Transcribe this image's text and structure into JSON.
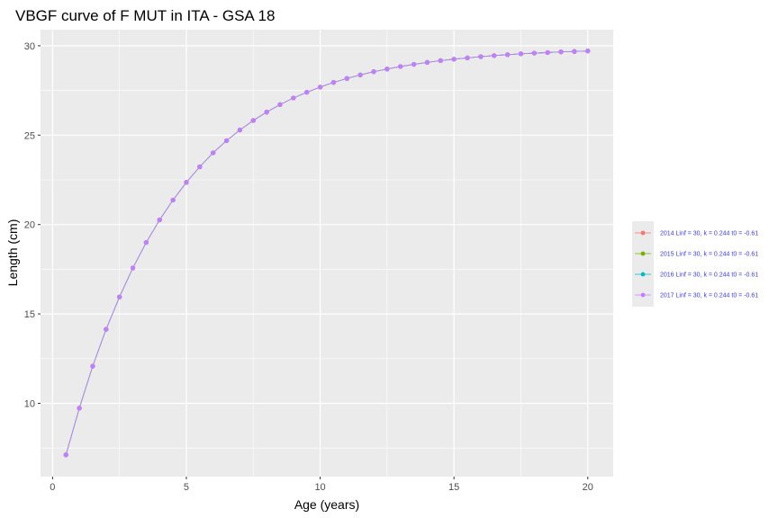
{
  "chart_data": {
    "type": "line",
    "title": "VBGF curve of F MUT in ITA - GSA 18",
    "xlabel": "Age (years)",
    "ylabel": "Length (cm)",
    "xlim": [
      -0.45,
      20.95
    ],
    "ylim": [
      5.9,
      30.9
    ],
    "x_ticks": [
      0,
      5,
      10,
      15,
      20
    ],
    "y_ticks": [
      10,
      15,
      20,
      25,
      30
    ],
    "grid": true,
    "legend_position": "right",
    "x": [
      0.5,
      1,
      1.5,
      2,
      2.5,
      3,
      3.5,
      4,
      4.5,
      5,
      5.5,
      6,
      6.5,
      7,
      7.5,
      8,
      8.5,
      9,
      9.5,
      10,
      10.5,
      11,
      11.5,
      12,
      12.5,
      13,
      13.5,
      14,
      14.5,
      15,
      15.5,
      16,
      16.5,
      17,
      17.5,
      18,
      18.5,
      19,
      19.5,
      20
    ],
    "series": [
      {
        "name": "2014 Linf = 30, k = 0.244 t0 = -0.61",
        "color": "#F8766D",
        "values": [
          7.12,
          9.73,
          12.08,
          14.14,
          15.95,
          17.57,
          19.0,
          20.26,
          21.37,
          22.36,
          23.23,
          24.01,
          24.69,
          25.29,
          25.82,
          26.29,
          26.71,
          27.08,
          27.4,
          27.69,
          27.95,
          28.17,
          28.37,
          28.55,
          28.7,
          28.84,
          28.96,
          29.07,
          29.17,
          29.25,
          29.32,
          29.39,
          29.45,
          29.5,
          29.55,
          29.59,
          29.62,
          29.66,
          29.68,
          29.71
        ]
      },
      {
        "name": "2015 Linf = 30, k = 0.244 t0 = -0.61",
        "color": "#7CAE00",
        "values": [
          7.12,
          9.73,
          12.08,
          14.14,
          15.95,
          17.57,
          19.0,
          20.26,
          21.37,
          22.36,
          23.23,
          24.01,
          24.69,
          25.29,
          25.82,
          26.29,
          26.71,
          27.08,
          27.4,
          27.69,
          27.95,
          28.17,
          28.37,
          28.55,
          28.7,
          28.84,
          28.96,
          29.07,
          29.17,
          29.25,
          29.32,
          29.39,
          29.45,
          29.5,
          29.55,
          29.59,
          29.62,
          29.66,
          29.68,
          29.71
        ]
      },
      {
        "name": "2016 Linf = 30, k = 0.244 t0 = -0.61",
        "color": "#00BFC4",
        "values": [
          7.12,
          9.73,
          12.08,
          14.14,
          15.95,
          17.57,
          19.0,
          20.26,
          21.37,
          22.36,
          23.23,
          24.01,
          24.69,
          25.29,
          25.82,
          26.29,
          26.71,
          27.08,
          27.4,
          27.69,
          27.95,
          28.17,
          28.37,
          28.55,
          28.7,
          28.84,
          28.96,
          29.07,
          29.17,
          29.25,
          29.32,
          29.39,
          29.45,
          29.5,
          29.55,
          29.59,
          29.62,
          29.66,
          29.68,
          29.71
        ]
      },
      {
        "name": "2017 Linf = 30, k = 0.244 t0 = -0.61",
        "color": "#C77CFF",
        "values": [
          7.12,
          9.73,
          12.08,
          14.14,
          15.95,
          17.57,
          19.0,
          20.26,
          21.37,
          22.36,
          23.23,
          24.01,
          24.69,
          25.29,
          25.82,
          26.29,
          26.71,
          27.08,
          27.4,
          27.69,
          27.95,
          28.17,
          28.37,
          28.55,
          28.7,
          28.84,
          28.96,
          29.07,
          29.17,
          29.25,
          29.32,
          29.39,
          29.45,
          29.5,
          29.55,
          29.59,
          29.62,
          29.66,
          29.68,
          29.71
        ]
      }
    ]
  },
  "colors": {
    "panel_background": "#EBEBEB",
    "grid_line": "#FFFFFF",
    "legend_text": "#3A3AF2"
  }
}
